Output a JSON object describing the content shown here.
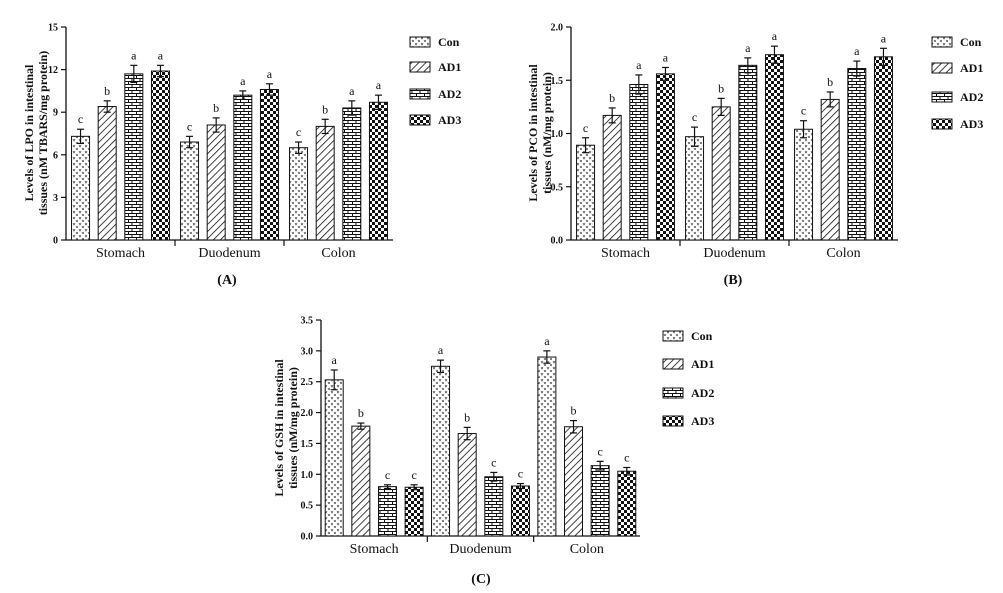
{
  "legend": [
    "Con",
    "AD1",
    "AD2",
    "AD3"
  ],
  "categories": [
    "Stomach",
    "Duodenum",
    "Colon"
  ],
  "colors": {
    "ink": "#111111",
    "bar_fill": "#ffffff"
  },
  "patterns": [
    "dots-v",
    "diagonal",
    "brick",
    "checker"
  ],
  "chart_data": [
    {
      "type": "bar",
      "panel_label": "(A)",
      "ylabel_lines": [
        "Levels of LPO in intestinal",
        "tissues (nM TBARS/mg protein)"
      ],
      "ylim": [
        0,
        15
      ],
      "yticks": [
        0,
        3,
        6,
        9,
        12,
        15
      ],
      "ytick_labels": [
        "0",
        "3",
        "6",
        "9",
        "12",
        "15"
      ],
      "categories": [
        "Stomach",
        "Duodenum",
        "Colon"
      ],
      "series": [
        {
          "name": "Con",
          "values": [
            7.3,
            6.9,
            6.5
          ],
          "errors": [
            0.5,
            0.4,
            0.4
          ],
          "letters": [
            "c",
            "c",
            "c"
          ]
        },
        {
          "name": "AD1",
          "values": [
            9.4,
            8.1,
            8.0
          ],
          "errors": [
            0.4,
            0.5,
            0.5
          ],
          "letters": [
            "b",
            "b",
            "b"
          ]
        },
        {
          "name": "AD2",
          "values": [
            11.7,
            10.2,
            9.3
          ],
          "errors": [
            0.6,
            0.3,
            0.5
          ],
          "letters": [
            "a",
            "a",
            "a"
          ]
        },
        {
          "name": "AD3",
          "values": [
            11.9,
            10.6,
            9.7
          ],
          "errors": [
            0.4,
            0.4,
            0.5
          ],
          "letters": [
            "a",
            "a",
            "a"
          ]
        }
      ]
    },
    {
      "type": "bar",
      "panel_label": "(B)",
      "ylabel_lines": [
        "Levels of PCO in intestinal",
        "tissues (nM/mg protein)"
      ],
      "ylim": [
        0,
        2.0
      ],
      "yticks": [
        0,
        0.5,
        1.0,
        1.5,
        2.0
      ],
      "ytick_labels": [
        "0.0",
        "0.5",
        "1.0",
        "1.5",
        "2.0"
      ],
      "categories": [
        "Stomach",
        "Duodenum",
        "Colon"
      ],
      "series": [
        {
          "name": "Con",
          "values": [
            0.89,
            0.97,
            1.04
          ],
          "errors": [
            0.07,
            0.09,
            0.08
          ],
          "letters": [
            "c",
            "c",
            "c"
          ]
        },
        {
          "name": "AD1",
          "values": [
            1.17,
            1.25,
            1.32
          ],
          "errors": [
            0.07,
            0.08,
            0.07
          ],
          "letters": [
            "b",
            "b",
            "b"
          ]
        },
        {
          "name": "AD2",
          "values": [
            1.46,
            1.64,
            1.61
          ],
          "errors": [
            0.09,
            0.07,
            0.07
          ],
          "letters": [
            "a",
            "a",
            "a"
          ]
        },
        {
          "name": "AD3",
          "values": [
            1.56,
            1.74,
            1.72
          ],
          "errors": [
            0.06,
            0.08,
            0.08
          ],
          "letters": [
            "a",
            "a",
            "a"
          ]
        }
      ]
    },
    {
      "type": "bar",
      "panel_label": "(C)",
      "ylabel_lines": [
        "Levels of GSH in intestinal",
        "tissues (nM/mg protein)"
      ],
      "ylim": [
        0,
        3.5
      ],
      "yticks": [
        0,
        0.5,
        1.0,
        1.5,
        2.0,
        2.5,
        3.0,
        3.5
      ],
      "ytick_labels": [
        "0.0",
        "0.5",
        "1.0",
        "1.5",
        "2.0",
        "2.5",
        "3.0",
        "3.5"
      ],
      "categories": [
        "Stomach",
        "Duodenum",
        "Colon"
      ],
      "series": [
        {
          "name": "Con",
          "values": [
            2.53,
            2.75,
            2.9
          ],
          "errors": [
            0.16,
            0.1,
            0.1
          ],
          "letters": [
            "a",
            "a",
            "a"
          ]
        },
        {
          "name": "AD1",
          "values": [
            1.78,
            1.66,
            1.77
          ],
          "errors": [
            0.05,
            0.1,
            0.1
          ],
          "letters": [
            "b",
            "b",
            "b"
          ]
        },
        {
          "name": "AD2",
          "values": [
            0.8,
            0.96,
            1.14
          ],
          "errors": [
            0.03,
            0.07,
            0.07
          ],
          "letters": [
            "c",
            "c",
            "c"
          ]
        },
        {
          "name": "AD3",
          "values": [
            0.79,
            0.81,
            1.05
          ],
          "errors": [
            0.04,
            0.04,
            0.06
          ],
          "letters": [
            "c",
            "c",
            "c"
          ]
        }
      ]
    }
  ]
}
